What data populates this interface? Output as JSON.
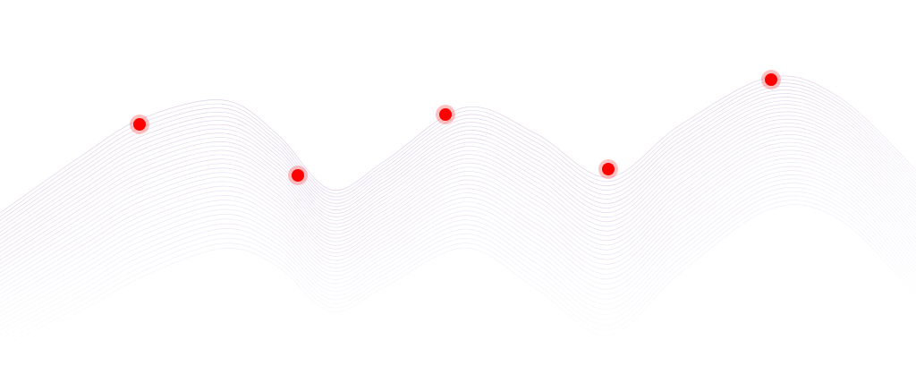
{
  "colors": {
    "background": "#ffffff",
    "wave_line": "#c9a9d6",
    "wave_line_right": "#c4b8e6",
    "marker_core": "#ff0000",
    "marker_ring": "#ff8a8a"
  },
  "markers": [
    {
      "id": "marker-1",
      "icon": "red-dot-marker"
    },
    {
      "id": "marker-2",
      "icon": "red-dot-marker"
    },
    {
      "id": "marker-3",
      "icon": "red-dot-marker"
    },
    {
      "id": "marker-4",
      "icon": "red-dot-marker"
    },
    {
      "id": "marker-5",
      "icon": "red-dot-marker"
    }
  ]
}
